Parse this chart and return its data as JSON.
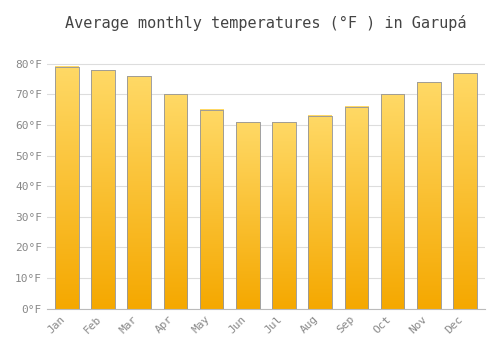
{
  "title": "Average monthly temperatures (°F ) in Garupá",
  "months": [
    "Jan",
    "Feb",
    "Mar",
    "Apr",
    "May",
    "Jun",
    "Jul",
    "Aug",
    "Sep",
    "Oct",
    "Nov",
    "Dec"
  ],
  "values": [
    79,
    78,
    76,
    70,
    65,
    61,
    61,
    63,
    66,
    70,
    74,
    77
  ],
  "bar_color_top": "#FFD966",
  "bar_color_bottom": "#F5A800",
  "bar_edge_color": "#999999",
  "background_color": "#FFFFFF",
  "grid_color": "#DDDDDD",
  "ylim": [
    0,
    88
  ],
  "yticks": [
    0,
    10,
    20,
    30,
    40,
    50,
    60,
    70,
    80
  ],
  "ytick_labels": [
    "0°F",
    "10°F",
    "20°F",
    "30°F",
    "40°F",
    "50°F",
    "60°F",
    "70°F",
    "80°F"
  ],
  "title_fontsize": 11,
  "tick_fontsize": 8,
  "tick_color": "#888888",
  "spine_color": "#BBBBBB"
}
